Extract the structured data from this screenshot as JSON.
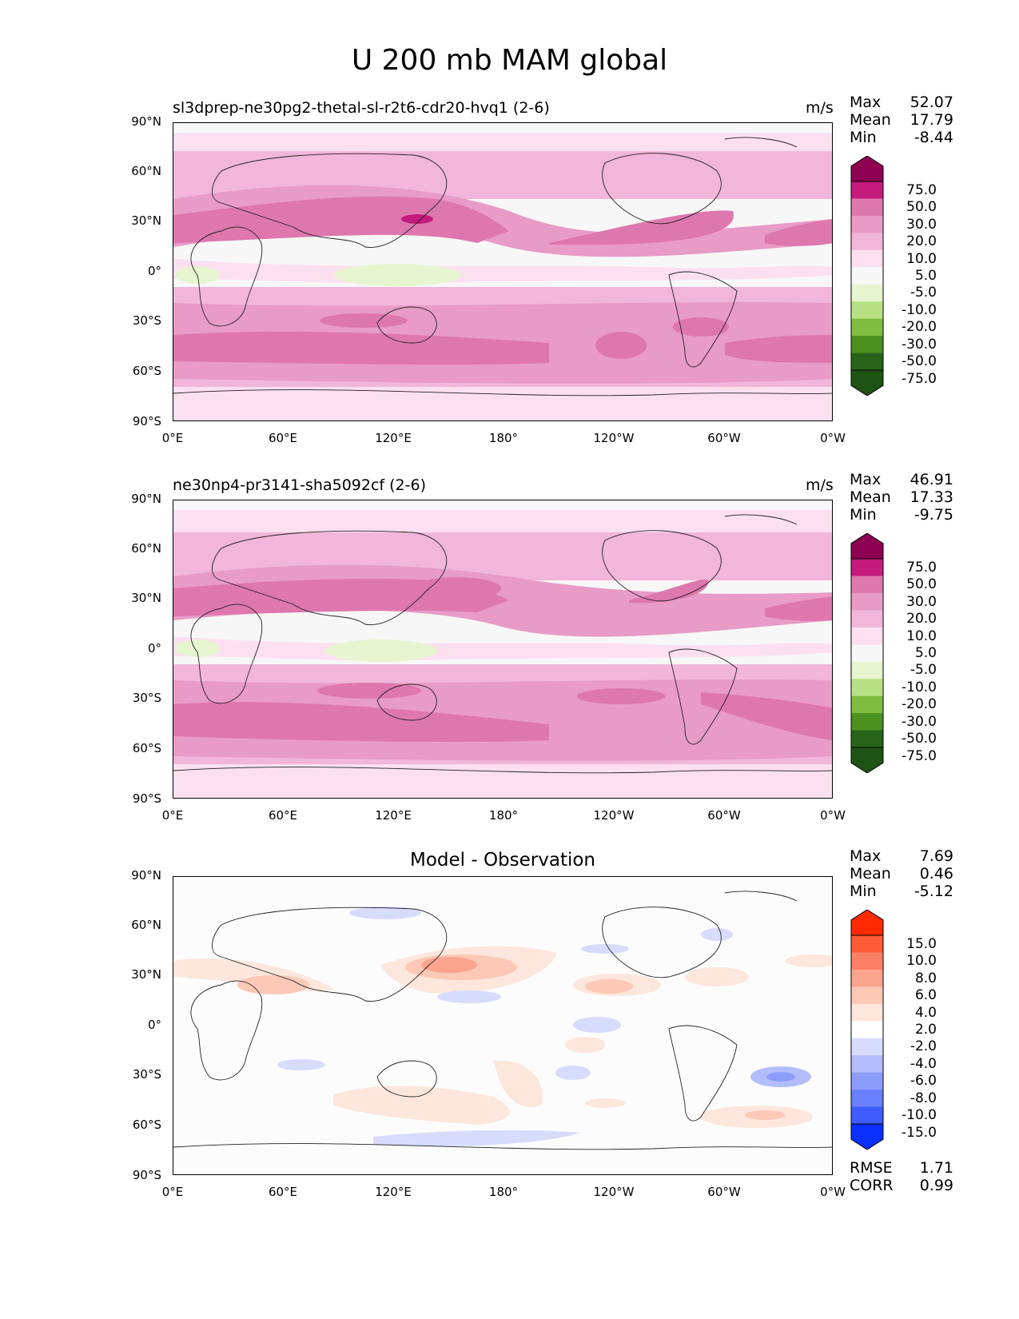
{
  "title": "U 200 mb MAM global",
  "x_ticks": [
    "0°E",
    "60°E",
    "120°E",
    "180°",
    "120°W",
    "60°W",
    "0°W"
  ],
  "y_ticks": [
    "90°N",
    "60°N",
    "30°N",
    "0°",
    "30°S",
    "60°S",
    "90°S"
  ],
  "chart_data": [
    {
      "type": "heatmap",
      "title": "sl3dprep-ne30pg2-thetal-sl-r2t6-cdr20-hvq1 (2-6)",
      "units": "m/s",
      "stats": {
        "max": "52.07",
        "mean": "17.79",
        "min": "-8.44"
      },
      "colorbar": {
        "levels": [
          "75.0",
          "50.0",
          "30.0",
          "20.0",
          "10.0",
          "5.0",
          "-5.0",
          "-10.0",
          "-20.0",
          "-30.0",
          "-50.0",
          "-75.0"
        ],
        "colors": [
          "#8e0152",
          "#c51b7d",
          "#de77ae",
          "#e89bc6",
          "#f1b6da",
          "#fde0ef",
          "#f7f7f7",
          "#e6f5d0",
          "#b8e186",
          "#7fbc41",
          "#4d9221",
          "#276419",
          "#1f5314"
        ]
      }
    },
    {
      "type": "heatmap",
      "title": "ne30np4-pr3141-sha5092cf (2-6)",
      "units": "m/s",
      "stats": {
        "max": "46.91",
        "mean": "17.33",
        "min": "-9.75"
      },
      "colorbar": {
        "levels": [
          "75.0",
          "50.0",
          "30.0",
          "20.0",
          "10.0",
          "5.0",
          "-5.0",
          "-10.0",
          "-20.0",
          "-30.0",
          "-50.0",
          "-75.0"
        ],
        "colors": [
          "#8e0152",
          "#c51b7d",
          "#de77ae",
          "#e89bc6",
          "#f1b6da",
          "#fde0ef",
          "#f7f7f7",
          "#e6f5d0",
          "#b8e186",
          "#7fbc41",
          "#4d9221",
          "#276419",
          "#1f5314"
        ]
      }
    },
    {
      "type": "heatmap",
      "title": "Model - Observation",
      "units": "",
      "stats": {
        "max": "7.69",
        "mean": "0.46",
        "min": "-5.12"
      },
      "metrics": {
        "rmse": "1.71",
        "corr": "0.99"
      },
      "colorbar": {
        "levels": [
          "15.0",
          "10.0",
          "8.0",
          "6.0",
          "4.0",
          "2.0",
          "-2.0",
          "-4.0",
          "-6.0",
          "-8.0",
          "-10.0",
          "-15.0"
        ],
        "colors": [
          "#ff2a00",
          "#ff5a36",
          "#fc8066",
          "#fca48e",
          "#fdc8b6",
          "#fde6dc",
          "#ffffff",
          "#d7dcfd",
          "#b3bdfb",
          "#8c9cfb",
          "#6a7ffd",
          "#3f5cff",
          "#0a2fff"
        ]
      }
    }
  ],
  "labels": {
    "max": "Max",
    "mean": "Mean",
    "min": "Min",
    "rmse": "RMSE",
    "corr": "CORR"
  }
}
